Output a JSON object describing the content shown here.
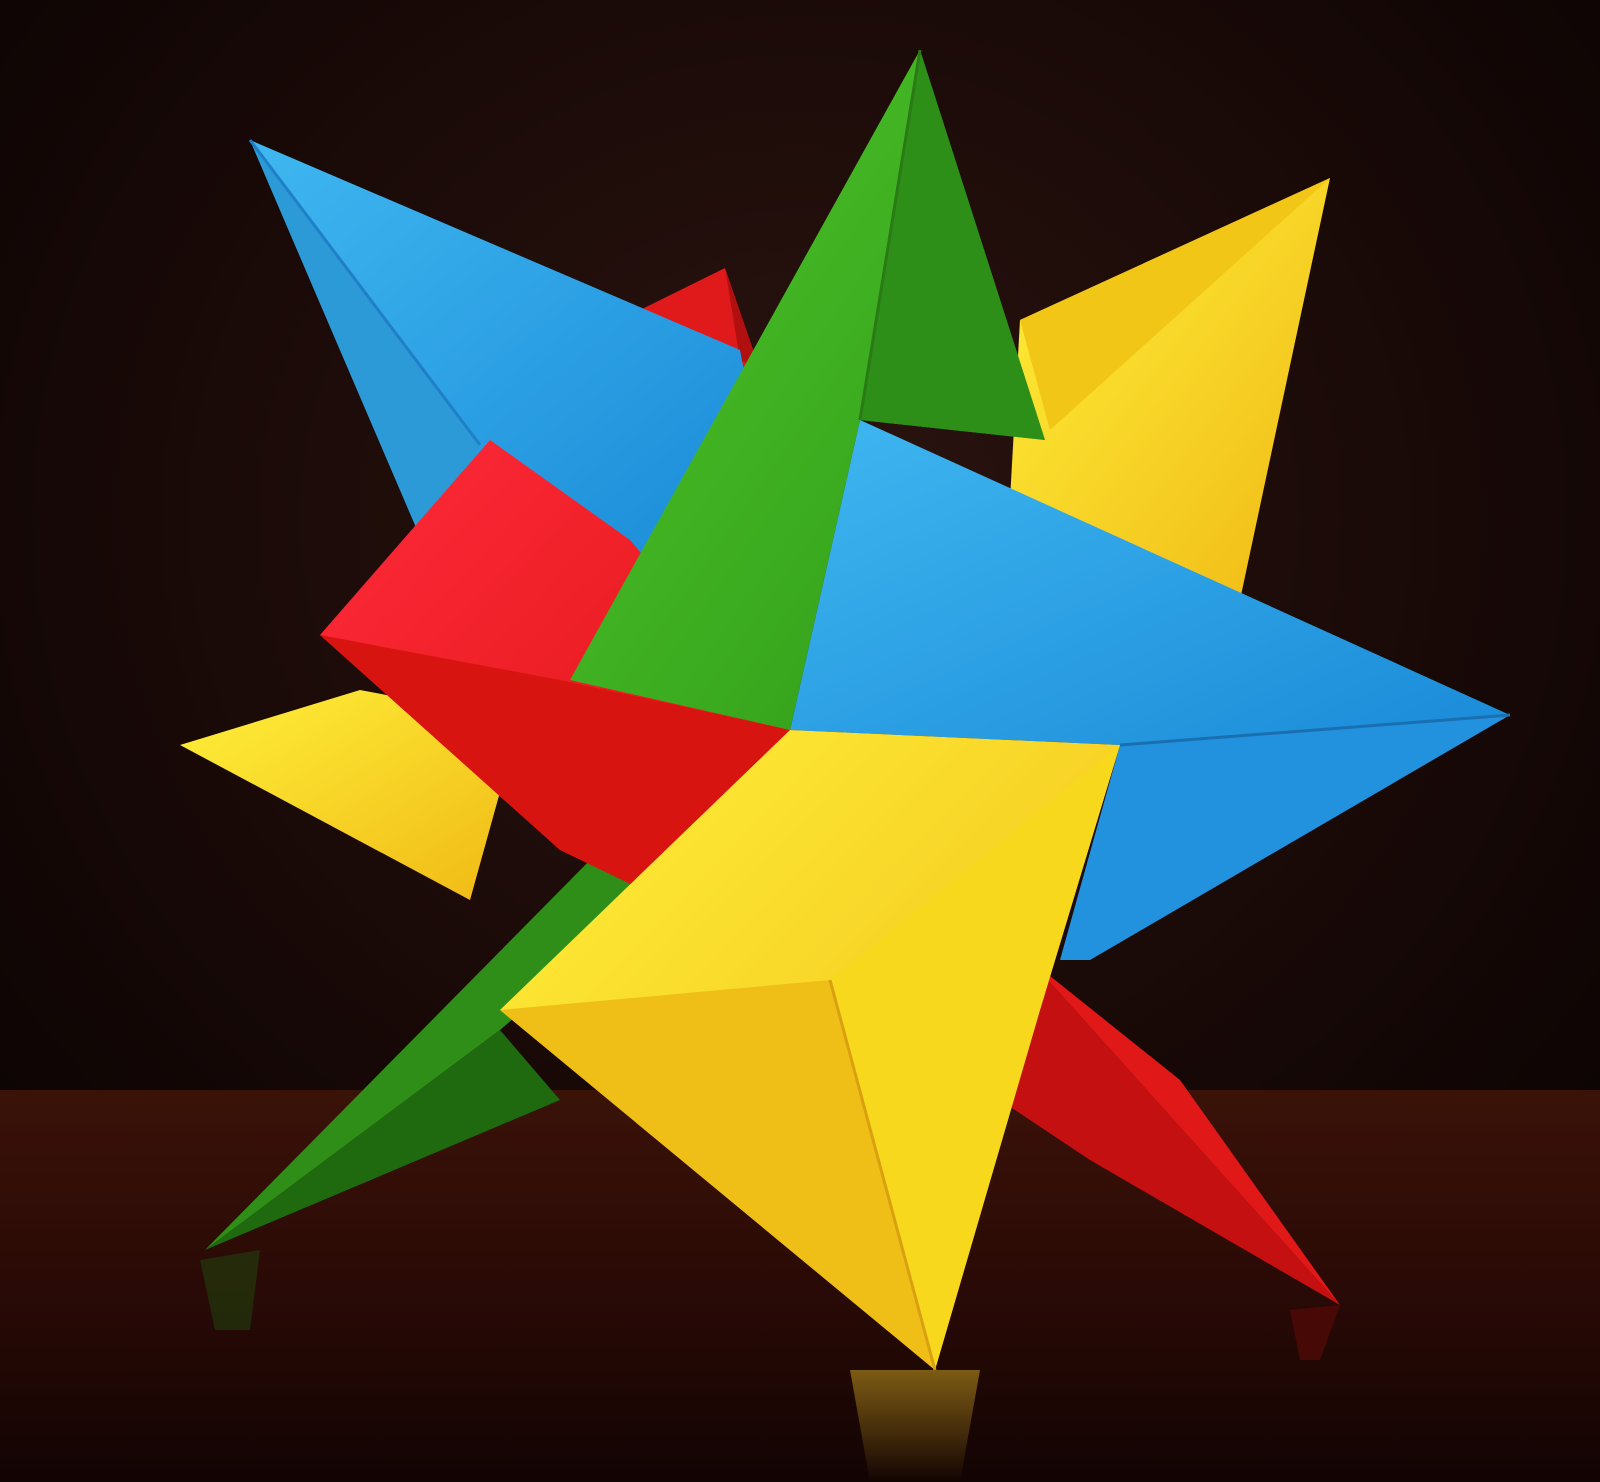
{
  "image": {
    "subject": "origami-star",
    "colors": {
      "blue": "#2aa7e8",
      "blue_shade": "#1f7fc8",
      "green": "#3cae1e",
      "green_shade": "#2a7a16",
      "yellow": "#f7d81c",
      "yellow_shade": "#e0b411",
      "red": "#ea1818",
      "red_shade": "#a50e0e",
      "background_dark": "#140806",
      "table": "#2a0c08"
    }
  }
}
